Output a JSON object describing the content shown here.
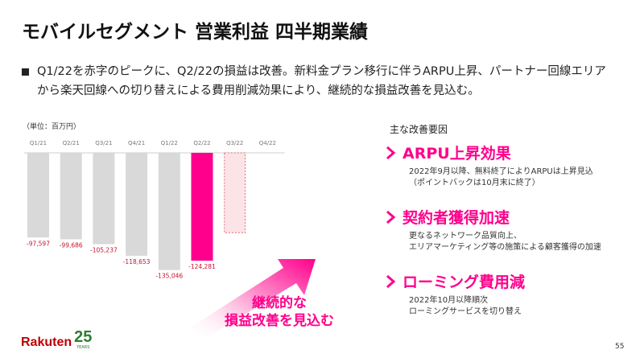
{
  "slide": {
    "title": "モバイルセグメント 営業利益 四半期業績",
    "bullet_line1": "Q1/22を赤字のピークに、Q2/22の損益は改善。新料金プラン移行に伴うARPU上昇、パートナー回線エリア",
    "bullet_line2": "から楽天回線への切り替えによる費用削減効果により、継続的な損益改善を見込む。",
    "unit": "（単位：百万円）",
    "arrow_line1": "継続的な",
    "arrow_line2": "損益改善を見込む",
    "page_number": "55"
  },
  "drivers": {
    "heading": "主な改善要因",
    "items": [
      {
        "title": "ARPU上昇効果",
        "line1": "2022年9月以降、無料終了によりARPUは上昇見込",
        "line2": "（ポイントバックは10月末に終了）"
      },
      {
        "title": "契約者獲得加速",
        "line1": "更なるネットワーク品質向上、",
        "line2": "エリアマーケティング等の施策による顧客獲得の加速"
      },
      {
        "title": "ローミング費用減",
        "line1": "2022年10月以降順次",
        "line2": "ローミングサービスを切り替え"
      }
    ]
  },
  "logo": {
    "word": "Rakuten",
    "number": "25",
    "sub": "YEARS"
  },
  "colors": {
    "accent": "#ff008c",
    "bar_gray": "#d9d9d9",
    "value_red": "#c8102e",
    "projection_fill": "#fbe3e6"
  },
  "chart_data": {
    "type": "bar",
    "categories": [
      "Q1/21",
      "Q2/21",
      "Q3/21",
      "Q4/21",
      "Q1/22",
      "Q2/22",
      "Q3/22",
      "Q4/22"
    ],
    "values": [
      -97597,
      -99686,
      -105237,
      -118653,
      -135046,
      -124281,
      null,
      null
    ],
    "value_labels": [
      "-97,597",
      "-99,686",
      "-105,237",
      "-118,653",
      "-135,046",
      "-124,281",
      "",
      ""
    ],
    "projected_bar": {
      "category": "Q3/22",
      "approx_value": -92000
    },
    "highlight_category": "Q2/22",
    "title": "",
    "xlabel": "",
    "ylabel": "",
    "ylim": [
      -140000,
      0
    ],
    "grid": false,
    "legend": "none"
  }
}
